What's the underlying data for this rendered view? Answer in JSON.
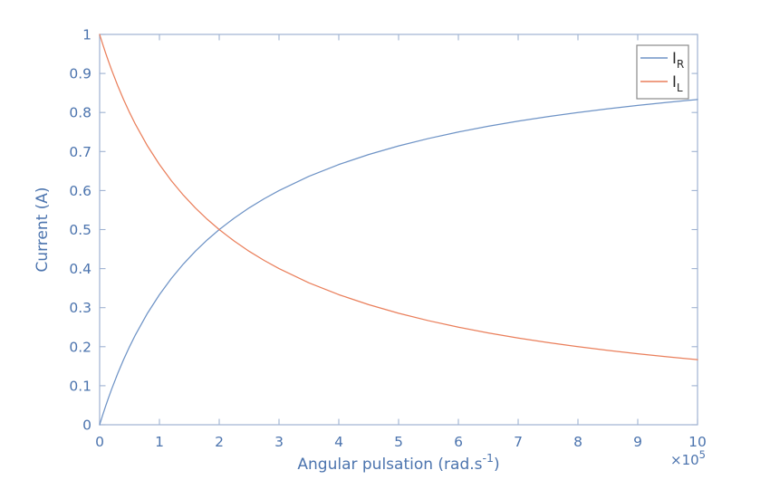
{
  "figure": {
    "background": "#ffffff",
    "text_color": "#4c74ae",
    "axis_color": "#9fb2d2"
  },
  "chart_data": {
    "type": "line",
    "title": "",
    "ylabel": "Current (A)",
    "xlabel_parts": {
      "pre": "Angular pulsation (rad.s",
      "sup": "-1",
      "post": ")"
    },
    "x_multiplier_parts": {
      "pre": "×10",
      "sup": "5"
    },
    "xlim": [
      0,
      10
    ],
    "ylim": [
      0,
      1
    ],
    "grid": false,
    "x_ticks": [
      0,
      1,
      2,
      3,
      4,
      5,
      6,
      7,
      8,
      9,
      10
    ],
    "x_tick_labels": [
      "0",
      "1",
      "2",
      "3",
      "4",
      "5",
      "6",
      "7",
      "8",
      "9",
      "10"
    ],
    "y_ticks": [
      0,
      0.1,
      0.2,
      0.3,
      0.4,
      0.5,
      0.6,
      0.7,
      0.8,
      0.9,
      1
    ],
    "y_tick_labels": [
      "0",
      "0.1",
      "0.2",
      "0.3",
      "0.4",
      "0.5",
      "0.6",
      "0.7",
      "0.8",
      "0.9",
      "1"
    ],
    "x": [
      0,
      0.05,
      0.1,
      0.15,
      0.2,
      0.3,
      0.4,
      0.5,
      0.6,
      0.8,
      1,
      1.2,
      1.4,
      1.6,
      1.8,
      2,
      2.25,
      2.5,
      2.75,
      3,
      3.5,
      4,
      4.5,
      5,
      5.5,
      6,
      6.5,
      7,
      7.5,
      8,
      8.5,
      9,
      9.5,
      10
    ],
    "series": [
      {
        "name": "I_R",
        "label_main": "I",
        "label_sub": "R",
        "color": "#6e93c6",
        "values": [
          0,
          0.0244,
          0.0476,
          0.0698,
          0.0909,
          0.1304,
          0.1667,
          0.2,
          0.2308,
          0.2857,
          0.3333,
          0.375,
          0.4118,
          0.4444,
          0.4737,
          0.5,
          0.5294,
          0.5556,
          0.5789,
          0.6,
          0.6364,
          0.6667,
          0.6923,
          0.7143,
          0.7333,
          0.75,
          0.7647,
          0.7778,
          0.7895,
          0.8,
          0.8095,
          0.8182,
          0.8261,
          0.8333
        ]
      },
      {
        "name": "I_L",
        "label_main": "I",
        "label_sub": "L",
        "color": "#ea7f5b",
        "values": [
          1,
          0.9756,
          0.9524,
          0.9302,
          0.9091,
          0.8696,
          0.8333,
          0.8,
          0.7692,
          0.7143,
          0.6667,
          0.625,
          0.5882,
          0.5556,
          0.5263,
          0.5,
          0.4706,
          0.4444,
          0.4211,
          0.4,
          0.3636,
          0.3333,
          0.3077,
          0.2857,
          0.2667,
          0.25,
          0.2353,
          0.2222,
          0.2105,
          0.2,
          0.1905,
          0.1818,
          0.1739,
          0.1667
        ]
      }
    ],
    "legend": {
      "position": "top-right",
      "border_color": "#8a8a8a",
      "text_color": "#2b2b2b",
      "background": "#ffffff"
    }
  }
}
